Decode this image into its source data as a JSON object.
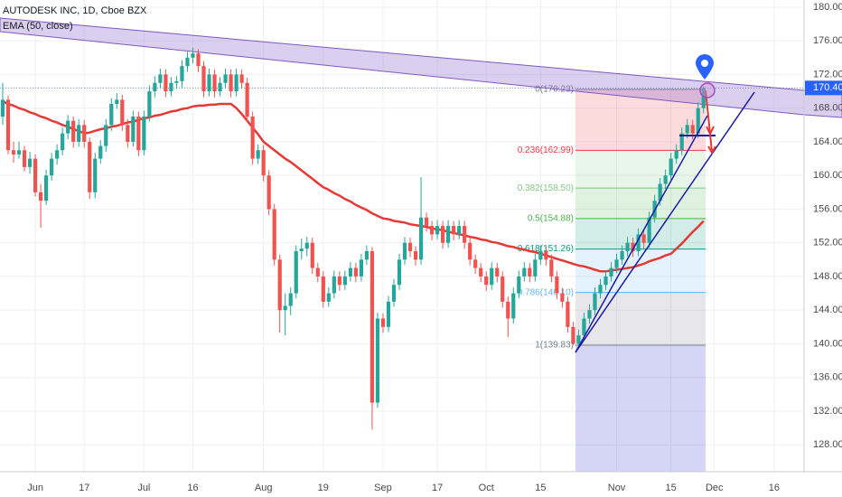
{
  "chart_data": {
    "type": "candlestick",
    "title": "AUTODESK INC, 1D, Cboe BZX",
    "indicator": {
      "name": "EMA (50, close)",
      "color": "#e53935",
      "values": [
        168.8,
        168.5,
        168.3,
        168.0,
        167.8,
        167.5,
        167.3,
        167.0,
        166.8,
        166.5,
        166.3,
        166.0,
        165.8,
        165.5,
        165.3,
        165.0,
        165.1,
        165.3,
        165.5,
        165.6,
        165.8,
        165.9,
        166.1,
        166.3,
        166.4,
        166.6,
        166.8,
        166.9,
        167.1,
        167.2,
        167.4,
        167.6,
        167.7,
        167.9,
        168.0,
        168.2,
        168.3,
        168.3,
        168.4,
        168.4,
        168.5,
        168.5,
        168.5,
        168.0,
        167.3,
        166.5,
        165.7,
        164.9,
        164.0,
        163.5,
        163.0,
        162.5,
        162.0,
        161.6,
        161.1,
        160.6,
        160.1,
        159.6,
        159.1,
        158.6,
        158.3,
        157.9,
        157.6,
        157.2,
        156.9,
        156.5,
        156.2,
        155.9,
        155.5,
        155.2,
        154.9,
        154.8,
        154.6,
        154.5,
        154.4,
        154.2,
        154.1,
        154.0,
        153.9,
        153.7,
        153.6,
        153.5,
        153.3,
        153.2,
        153.0,
        152.9,
        152.7,
        152.6,
        152.4,
        152.3,
        152.1,
        152.0,
        151.8,
        151.6,
        151.5,
        151.3,
        151.2,
        151.0,
        150.9,
        150.7,
        150.5,
        150.3,
        150.1,
        149.9,
        149.7,
        149.5,
        149.3,
        149.2,
        149.0,
        148.8,
        148.6,
        148.6,
        148.7,
        148.8,
        148.9,
        149.0,
        149.1,
        149.3,
        149.5,
        149.8,
        150.0,
        150.2,
        150.5,
        150.7,
        151.3,
        151.9,
        152.6,
        153.3,
        153.9,
        154.6
      ]
    },
    "up_color": "#26a69a",
    "down_color": "#ef5350",
    "ohlc": [
      [
        167,
        171,
        166,
        169
      ],
      [
        169,
        169.5,
        162.5,
        163
      ],
      [
        163,
        164,
        161.5,
        162.5
      ],
      [
        162.5,
        164,
        162,
        163
      ],
      [
        163,
        163.5,
        160.5,
        161
      ],
      [
        161,
        162.8,
        160.2,
        162
      ],
      [
        162,
        162.5,
        157.5,
        158
      ],
      [
        158,
        159,
        153.8,
        157
      ],
      [
        157,
        160.7,
        156.5,
        160
      ],
      [
        160,
        162.7,
        159.4,
        162
      ],
      [
        162,
        163.7,
        161.3,
        163
      ],
      [
        163,
        165.7,
        162.4,
        165
      ],
      [
        165,
        167.2,
        164.3,
        166.5
      ],
      [
        166.5,
        167,
        163.3,
        164
      ],
      [
        164,
        166.7,
        163.4,
        166
      ],
      [
        166,
        166.6,
        163.3,
        164
      ],
      [
        164,
        164.5,
        157.2,
        158
      ],
      [
        158,
        162.7,
        157.3,
        162
      ],
      [
        162,
        164.2,
        161.4,
        163.5
      ],
      [
        163.5,
        166.7,
        162.8,
        166
      ],
      [
        166,
        169.2,
        165.3,
        168.5
      ],
      [
        168.5,
        169.8,
        167.9,
        169
      ],
      [
        169,
        169.6,
        165.3,
        166
      ],
      [
        166,
        166.7,
        163.3,
        164
      ],
      [
        164,
        167.7,
        163.4,
        167
      ],
      [
        167,
        167.6,
        162.3,
        163
      ],
      [
        163,
        167.7,
        162.4,
        167
      ],
      [
        167,
        170.7,
        166.4,
        170
      ],
      [
        170,
        171.8,
        169.3,
        171
      ],
      [
        171,
        172.7,
        170.4,
        172
      ],
      [
        172,
        172.6,
        169.3,
        170
      ],
      [
        170,
        171.7,
        169.4,
        171
      ],
      [
        171,
        171.8,
        170.3,
        171.2
      ],
      [
        171.2,
        173.7,
        170.4,
        173
      ],
      [
        173,
        174.7,
        172.3,
        174
      ],
      [
        174,
        175.2,
        173.3,
        174.5
      ],
      [
        174.5,
        175,
        172.3,
        173
      ],
      [
        173,
        173.6,
        169.3,
        170
      ],
      [
        170,
        172.7,
        169.4,
        172
      ],
      [
        172,
        172.6,
        169.3,
        170
      ],
      [
        170,
        171.7,
        169.4,
        171
      ],
      [
        171,
        172.7,
        170.4,
        172
      ],
      [
        172,
        172.6,
        169.3,
        170
      ],
      [
        170,
        172.7,
        169.4,
        172
      ],
      [
        172,
        172.6,
        170.3,
        171
      ],
      [
        171,
        171.6,
        166.3,
        167
      ],
      [
        167,
        167.6,
        161.3,
        162
      ],
      [
        162,
        163.7,
        161.4,
        163
      ],
      [
        163,
        163.6,
        159.3,
        160
      ],
      [
        160,
        160.6,
        155.3,
        156
      ],
      [
        156,
        156.6,
        149.3,
        150
      ],
      [
        150,
        150.6,
        141.3,
        144
      ],
      [
        144,
        146,
        141,
        144.5
      ],
      [
        144.5,
        146.7,
        143.4,
        146
      ],
      [
        146,
        151.7,
        145.4,
        151
      ],
      [
        151,
        152.5,
        150,
        151.3
      ],
      [
        151.3,
        152.7,
        150.4,
        152
      ],
      [
        152,
        152.6,
        148.3,
        149
      ],
      [
        149,
        149.6,
        147.3,
        148
      ],
      [
        148,
        148.6,
        144.3,
        145
      ],
      [
        145,
        146.7,
        144.4,
        146
      ],
      [
        146,
        148.7,
        145.4,
        148
      ],
      [
        148,
        148.6,
        146.3,
        147
      ],
      [
        147,
        148.7,
        146.4,
        148
      ],
      [
        148,
        149.7,
        147.4,
        149
      ],
      [
        149,
        149.6,
        147.3,
        148
      ],
      [
        148,
        150.7,
        147.4,
        150
      ],
      [
        150,
        151.7,
        149.4,
        151
      ],
      [
        151,
        151.5,
        129.8,
        133
      ],
      [
        133,
        143.7,
        132.4,
        143
      ],
      [
        143,
        143.6,
        141.3,
        142
      ],
      [
        142,
        145.7,
        141.4,
        145
      ],
      [
        145,
        147.7,
        144.4,
        147
      ],
      [
        147,
        150.7,
        146.4,
        150
      ],
      [
        150,
        152.7,
        149.4,
        152
      ],
      [
        152,
        152.6,
        150.3,
        151
      ],
      [
        151,
        151.6,
        149.3,
        150
      ],
      [
        150,
        159.8,
        149.4,
        155
      ],
      [
        155,
        155.6,
        153.3,
        154
      ],
      [
        154,
        154.6,
        152.3,
        153
      ],
      [
        153,
        154.7,
        152.4,
        154
      ],
      [
        154,
        154.6,
        151.3,
        152
      ],
      [
        152,
        154.7,
        151.4,
        154
      ],
      [
        154,
        154.6,
        152.3,
        153
      ],
      [
        153,
        154.7,
        152.4,
        154
      ],
      [
        154,
        154.6,
        151.3,
        152
      ],
      [
        152,
        152.6,
        149.3,
        150
      ],
      [
        150,
        150.6,
        148.3,
        149
      ],
      [
        149,
        149.6,
        147.3,
        148
      ],
      [
        148,
        148.6,
        146.3,
        147
      ],
      [
        147,
        149.7,
        146.4,
        149
      ],
      [
        149,
        149.6,
        147.3,
        148
      ],
      [
        148,
        148.6,
        144.3,
        145
      ],
      [
        145,
        145.6,
        140.8,
        143
      ],
      [
        143,
        146.7,
        142.4,
        146
      ],
      [
        146,
        148.7,
        145.4,
        148
      ],
      [
        148,
        149.7,
        147.4,
        149
      ],
      [
        149,
        149.6,
        147.3,
        148
      ],
      [
        148,
        150.7,
        147.4,
        150
      ],
      [
        150,
        151.7,
        149.4,
        151
      ],
      [
        151,
        151.6,
        149.3,
        150
      ],
      [
        150,
        150.6,
        147.3,
        148
      ],
      [
        148,
        148.6,
        145.3,
        146
      ],
      [
        146,
        146.6,
        144.3,
        145
      ],
      [
        145,
        145.6,
        141.3,
        142
      ],
      [
        142,
        142.6,
        139.83,
        140
      ],
      [
        140,
        141.7,
        139.9,
        141
      ],
      [
        141,
        143.7,
        140.4,
        143
      ],
      [
        143,
        144.7,
        142.4,
        144
      ],
      [
        144,
        146.7,
        143.4,
        146
      ],
      [
        146,
        147.7,
        145.4,
        147
      ],
      [
        147,
        148.7,
        146.4,
        148
      ],
      [
        148,
        149.7,
        147.4,
        149
      ],
      [
        149,
        150.7,
        148.4,
        150
      ],
      [
        150,
        151.7,
        149.4,
        151
      ],
      [
        151,
        152.7,
        150.4,
        152
      ],
      [
        152,
        152.6,
        150.3,
        151
      ],
      [
        151,
        153.7,
        150.4,
        153
      ],
      [
        153,
        153.6,
        151.3,
        152
      ],
      [
        152,
        155.7,
        151.4,
        155
      ],
      [
        155,
        157.7,
        154.4,
        157
      ],
      [
        157,
        159.7,
        156.4,
        159
      ],
      [
        159,
        160.7,
        158.4,
        160
      ],
      [
        160,
        162.7,
        159.4,
        162
      ],
      [
        162,
        163.7,
        161.4,
        163
      ],
      [
        163,
        165.7,
        162.4,
        165
      ],
      [
        165,
        166.7,
        164.4,
        166
      ],
      [
        166,
        166.6,
        164.3,
        165
      ],
      [
        165,
        168.7,
        164.4,
        168
      ],
      [
        168,
        170.6,
        167.4,
        170.4
      ]
    ],
    "xlim": [
      -0.5,
      147.5
    ],
    "xticks": [
      {
        "value": 6,
        "label": "Jun"
      },
      {
        "value": 15,
        "label": "17"
      },
      {
        "value": 26,
        "label": "Jul"
      },
      {
        "value": 35,
        "label": "16"
      },
      {
        "value": 48,
        "label": "Aug"
      },
      {
        "value": 59,
        "label": "19"
      },
      {
        "value": 70,
        "label": "Sep"
      },
      {
        "value": 80,
        "label": "17"
      },
      {
        "value": 89,
        "label": "Oct"
      },
      {
        "value": 99,
        "label": "15"
      },
      {
        "value": 113,
        "label": "Nov"
      },
      {
        "value": 123,
        "label": "15"
      },
      {
        "value": 131,
        "label": "Dec"
      },
      {
        "value": 142,
        "label": "16"
      }
    ],
    "ylim": [
      124.8,
      180.85
    ],
    "yticks": [
      {
        "value": 128,
        "label": "128.00"
      },
      {
        "value": 132,
        "label": "132.00"
      },
      {
        "value": 136,
        "label": "136.00"
      },
      {
        "value": 140,
        "label": "140.00"
      },
      {
        "value": 144,
        "label": "144.00"
      },
      {
        "value": 148,
        "label": "148.00"
      },
      {
        "value": 152,
        "label": "152.00"
      },
      {
        "value": 156,
        "label": "156.00"
      },
      {
        "value": 160,
        "label": "160.00"
      },
      {
        "value": 164,
        "label": "164.00"
      },
      {
        "value": 168,
        "label": "168.00"
      },
      {
        "value": 172,
        "label": "172.00"
      },
      {
        "value": 176,
        "label": "176.00"
      },
      {
        "value": 180,
        "label": "180.00"
      }
    ],
    "grid": true,
    "last_price": {
      "value": 170.4,
      "label": "170.40",
      "color": "#2962ff"
    },
    "fib_levels": [
      {
        "price": 170.23,
        "label": "0(170.23)",
        "color": "#787b86"
      },
      {
        "price": 162.99,
        "label": "0.236(162.99)",
        "color": "#f23645"
      },
      {
        "price": 158.5,
        "label": "0.382(158.50)",
        "color": "#81c784"
      },
      {
        "price": 154.88,
        "label": "0.5(154.88)",
        "color": "#4caf50"
      },
      {
        "price": 151.26,
        "label": "0.618(151.26)",
        "color": "#089981"
      },
      {
        "price": 146.1,
        "label": "0.786(146.10)",
        "color": "#64b5f6"
      },
      {
        "price": 139.83,
        "label": "1(139.83)",
        "color": "#787b86"
      }
    ]
  }
}
